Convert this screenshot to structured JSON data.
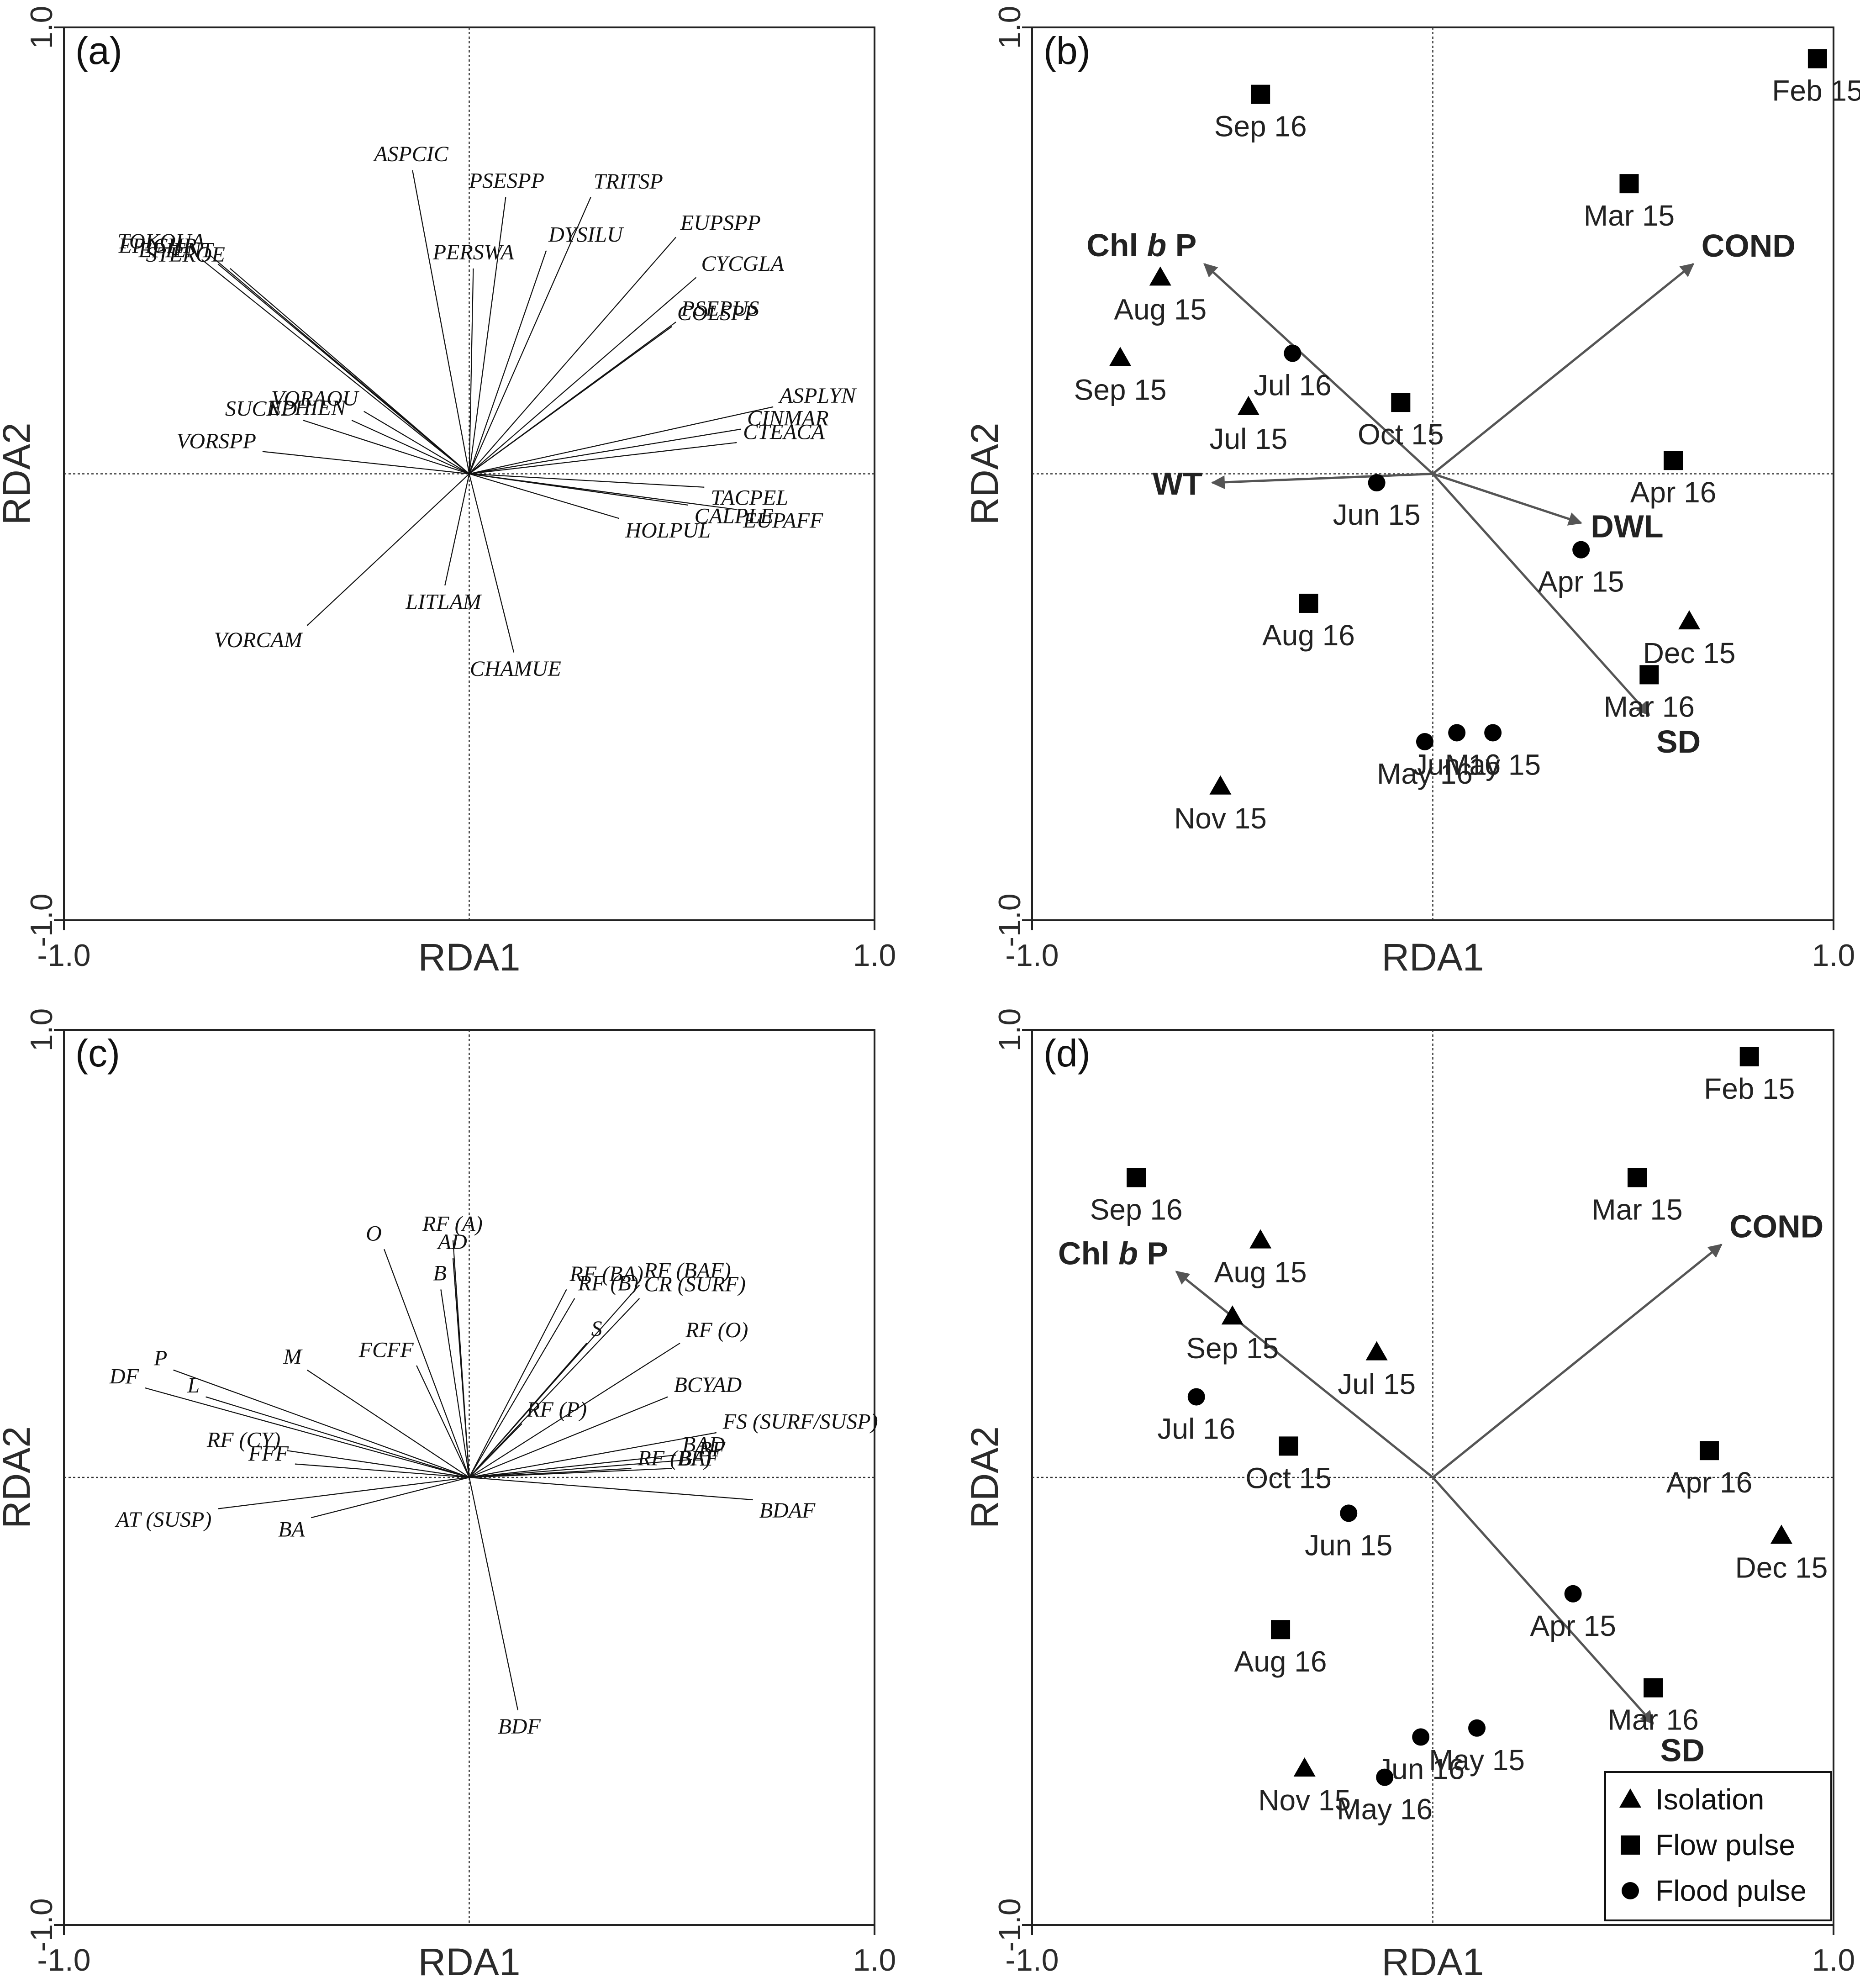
{
  "axis_labels": {
    "x": "RDA1",
    "y": "RDA2",
    "min": "-1.0",
    "max": "1.0"
  },
  "legend": {
    "isolation": "Isolation",
    "flow": "Flow pulse",
    "flood": "Flood pulse"
  },
  "chart_data": [
    {
      "panel": "(a)",
      "type": "scatter",
      "kind": "species-arrows",
      "xlabel": "RDA1",
      "ylabel": "RDA2",
      "xlim": [
        -1.0,
        1.0
      ],
      "ylim": [
        -1.0,
        1.0
      ],
      "arrows": [
        {
          "label": "ASPCIC",
          "x": -0.14,
          "y": 0.68
        },
        {
          "label": "PSESPP",
          "x": 0.09,
          "y": 0.62
        },
        {
          "label": "TRITSP",
          "x": 0.3,
          "y": 0.62
        },
        {
          "label": "PERSWA",
          "x": 0.01,
          "y": 0.46
        },
        {
          "label": "DYSILU",
          "x": 0.19,
          "y": 0.5
        },
        {
          "label": "EUPSPP",
          "x": 0.51,
          "y": 0.53
        },
        {
          "label": "CYCGLA",
          "x": 0.56,
          "y": 0.44
        },
        {
          "label": "COLSPP",
          "x": 0.5,
          "y": 0.33
        },
        {
          "label": "PSEPUS",
          "x": 0.51,
          "y": 0.34
        },
        {
          "label": "TOKOUA",
          "x": -0.64,
          "y": 0.49
        },
        {
          "label": "EPICHR",
          "x": -0.66,
          "y": 0.48
        },
        {
          "label": "EPIENT",
          "x": -0.62,
          "y": 0.47
        },
        {
          "label": "STEROE",
          "x": -0.59,
          "y": 0.46
        },
        {
          "label": "VORAOU",
          "x": -0.26,
          "y": 0.14
        },
        {
          "label": "EPHIEN",
          "x": -0.29,
          "y": 0.12
        },
        {
          "label": "SUCND",
          "x": -0.41,
          "y": 0.12
        },
        {
          "label": "VORSPP",
          "x": -0.51,
          "y": 0.05
        },
        {
          "label": "ASPLYN",
          "x": 0.75,
          "y": 0.15
        },
        {
          "label": "CINMAR",
          "x": 0.67,
          "y": 0.1
        },
        {
          "label": "CTEACA",
          "x": 0.66,
          "y": 0.07
        },
        {
          "label": "TACPEL",
          "x": 0.58,
          "y": -0.03
        },
        {
          "label": "EUPAFF",
          "x": 0.66,
          "y": -0.08
        },
        {
          "label": "CALPLE",
          "x": 0.54,
          "y": -0.07
        },
        {
          "label": "HOLPUL",
          "x": 0.37,
          "y": -0.1
        },
        {
          "label": "LITLAM",
          "x": -0.06,
          "y": -0.25
        },
        {
          "label": "CHAMUE",
          "x": 0.11,
          "y": -0.4
        },
        {
          "label": "VORCAM",
          "x": -0.4,
          "y": -0.34
        }
      ]
    },
    {
      "panel": "(b)",
      "type": "scatter",
      "kind": "samples-biplot",
      "xlabel": "RDA1",
      "ylabel": "RDA2",
      "xlim": [
        -1.0,
        1.0
      ],
      "ylim": [
        -1.0,
        1.0
      ],
      "env_vectors": [
        {
          "label": "Chl b P",
          "pre": "Chl ",
          "italic": "b",
          "post": " P",
          "x": -0.57,
          "y": 0.47
        },
        {
          "label": "COND",
          "x": 0.65,
          "y": 0.47
        },
        {
          "label": "WT",
          "x": -0.55,
          "y": -0.02
        },
        {
          "label": "DWL",
          "x": 0.37,
          "y": -0.11
        },
        {
          "label": "SD",
          "x": 0.54,
          "y": -0.54
        }
      ],
      "samples": [
        {
          "label": "Feb 15",
          "phase": "flow",
          "x": 0.96,
          "y": 0.93
        },
        {
          "label": "Sep 16",
          "phase": "flow",
          "x": -0.43,
          "y": 0.85
        },
        {
          "label": "Mar 15",
          "phase": "flow",
          "x": 0.49,
          "y": 0.65
        },
        {
          "label": "Aug 15",
          "phase": "isolation",
          "x": -0.68,
          "y": 0.44
        },
        {
          "label": "Jul 16",
          "phase": "flood",
          "x": -0.35,
          "y": 0.27
        },
        {
          "label": "Oct 15",
          "phase": "flow",
          "x": -0.08,
          "y": 0.16
        },
        {
          "label": "Sep 15",
          "phase": "isolation",
          "x": -0.78,
          "y": 0.26
        },
        {
          "label": "Jul 15",
          "phase": "isolation",
          "x": -0.46,
          "y": 0.15
        },
        {
          "label": "Apr 16",
          "phase": "flow",
          "x": 0.6,
          "y": 0.03
        },
        {
          "label": "Jun 15",
          "phase": "flood",
          "x": -0.14,
          "y": -0.02
        },
        {
          "label": "Apr 15",
          "phase": "flood",
          "x": 0.37,
          "y": -0.17
        },
        {
          "label": "Aug 16",
          "phase": "flow",
          "x": -0.31,
          "y": -0.29
        },
        {
          "label": "Dec 15",
          "phase": "isolation",
          "x": 0.64,
          "y": -0.33
        },
        {
          "label": "Mar 16",
          "phase": "flow",
          "x": 0.54,
          "y": -0.45
        },
        {
          "label": "May 15",
          "phase": "flood",
          "x": 0.15,
          "y": -0.58
        },
        {
          "label": "Jun 16",
          "phase": "flood",
          "x": 0.06,
          "y": -0.58
        },
        {
          "label": "May 16",
          "phase": "flood",
          "x": -0.02,
          "y": -0.6
        },
        {
          "label": "Nov 15",
          "phase": "isolation",
          "x": -0.53,
          "y": -0.7
        }
      ]
    },
    {
      "panel": "(c)",
      "type": "scatter",
      "kind": "trait-arrows",
      "xlabel": "RDA1",
      "ylabel": "RDA2",
      "xlim": [
        -1.0,
        1.0
      ],
      "ylim": [
        -1.0,
        1.0
      ],
      "arrows": [
        {
          "label": "O",
          "x": -0.21,
          "y": 0.51
        },
        {
          "label": "RF (A)",
          "x": -0.04,
          "y": 0.53
        },
        {
          "label": "AD",
          "x": -0.04,
          "y": 0.49
        },
        {
          "label": "B",
          "x": -0.07,
          "y": 0.42
        },
        {
          "label": "RF (BA)",
          "x": 0.24,
          "y": 0.42
        },
        {
          "label": "RF (B)",
          "x": 0.26,
          "y": 0.4
        },
        {
          "label": "RF (BAF)",
          "x": 0.42,
          "y": 0.43
        },
        {
          "label": "CR (SURF)",
          "x": 0.42,
          "y": 0.4
        },
        {
          "label": "S",
          "x": 0.29,
          "y": 0.3
        },
        {
          "label": "RF (O)",
          "x": 0.52,
          "y": 0.3
        },
        {
          "label": "BCYAD",
          "x": 0.49,
          "y": 0.18
        },
        {
          "label": "RF (P)",
          "x": 0.13,
          "y": 0.12
        },
        {
          "label": "FS (SURF/SUSP)",
          "x": 0.61,
          "y": 0.1
        },
        {
          "label": "BAD",
          "x": 0.51,
          "y": 0.05
        },
        {
          "label": "RF (BF)",
          "x": 0.4,
          "y": 0.02
        },
        {
          "label": "BF",
          "x": 0.55,
          "y": 0.04
        },
        {
          "label": "BAF",
          "x": 0.5,
          "y": 0.02
        },
        {
          "label": "BDAF",
          "x": 0.7,
          "y": -0.05
        },
        {
          "label": "BDF",
          "x": 0.12,
          "y": -0.52
        },
        {
          "label": "FCFF",
          "x": -0.13,
          "y": 0.25
        },
        {
          "label": "M",
          "x": -0.4,
          "y": 0.24
        },
        {
          "label": "P",
          "x": -0.73,
          "y": 0.24
        },
        {
          "label": "L",
          "x": -0.65,
          "y": 0.18
        },
        {
          "label": "DF",
          "x": -0.8,
          "y": 0.2
        },
        {
          "label": "RF (CY)",
          "x": -0.45,
          "y": 0.06
        },
        {
          "label": "FFF",
          "x": -0.43,
          "y": 0.03
        },
        {
          "label": "AT (SUSP)",
          "x": -0.62,
          "y": -0.07
        },
        {
          "label": "BA",
          "x": -0.39,
          "y": -0.09
        }
      ]
    },
    {
      "panel": "(d)",
      "type": "scatter",
      "kind": "samples-biplot",
      "xlabel": "RDA1",
      "ylabel": "RDA2",
      "xlim": [
        -1.0,
        1.0
      ],
      "ylim": [
        -1.0,
        1.0
      ],
      "env_vectors": [
        {
          "label": "Chl b P",
          "pre": "Chl ",
          "italic": "b",
          "post": " P",
          "x": -0.64,
          "y": 0.46
        },
        {
          "label": "COND",
          "x": 0.72,
          "y": 0.52
        },
        {
          "label": "SD",
          "x": 0.55,
          "y": -0.55
        }
      ],
      "samples": [
        {
          "label": "Feb 15",
          "phase": "flow",
          "x": 0.79,
          "y": 0.94
        },
        {
          "label": "Sep 16",
          "phase": "flow",
          "x": -0.74,
          "y": 0.67
        },
        {
          "label": "Mar 15",
          "phase": "flow",
          "x": 0.51,
          "y": 0.67
        },
        {
          "label": "Aug 15",
          "phase": "isolation",
          "x": -0.43,
          "y": 0.53
        },
        {
          "label": "Sep 15",
          "phase": "isolation",
          "x": -0.5,
          "y": 0.36
        },
        {
          "label": "Jul 15",
          "phase": "isolation",
          "x": -0.14,
          "y": 0.28
        },
        {
          "label": "Jul 16",
          "phase": "flood",
          "x": -0.59,
          "y": 0.18
        },
        {
          "label": "Oct 15",
          "phase": "flow",
          "x": -0.36,
          "y": 0.07
        },
        {
          "label": "Apr 16",
          "phase": "flow",
          "x": 0.69,
          "y": 0.06
        },
        {
          "label": "Dec 15",
          "phase": "isolation",
          "x": 0.87,
          "y": -0.13
        },
        {
          "label": "Jun 15",
          "phase": "flood",
          "x": -0.21,
          "y": -0.08
        },
        {
          "label": "Apr 15",
          "phase": "flood",
          "x": 0.35,
          "y": -0.26
        },
        {
          "label": "Aug 16",
          "phase": "flow",
          "x": -0.38,
          "y": -0.34
        },
        {
          "label": "Mar 16",
          "phase": "flow",
          "x": 0.55,
          "y": -0.47
        },
        {
          "label": "Jun 16",
          "phase": "flood",
          "x": -0.03,
          "y": -0.58
        },
        {
          "label": "May 15",
          "phase": "flood",
          "x": 0.11,
          "y": -0.56
        },
        {
          "label": "Nov 15",
          "phase": "isolation",
          "x": -0.32,
          "y": -0.65
        },
        {
          "label": "May 16",
          "phase": "flood",
          "x": -0.12,
          "y": -0.67
        }
      ]
    }
  ]
}
